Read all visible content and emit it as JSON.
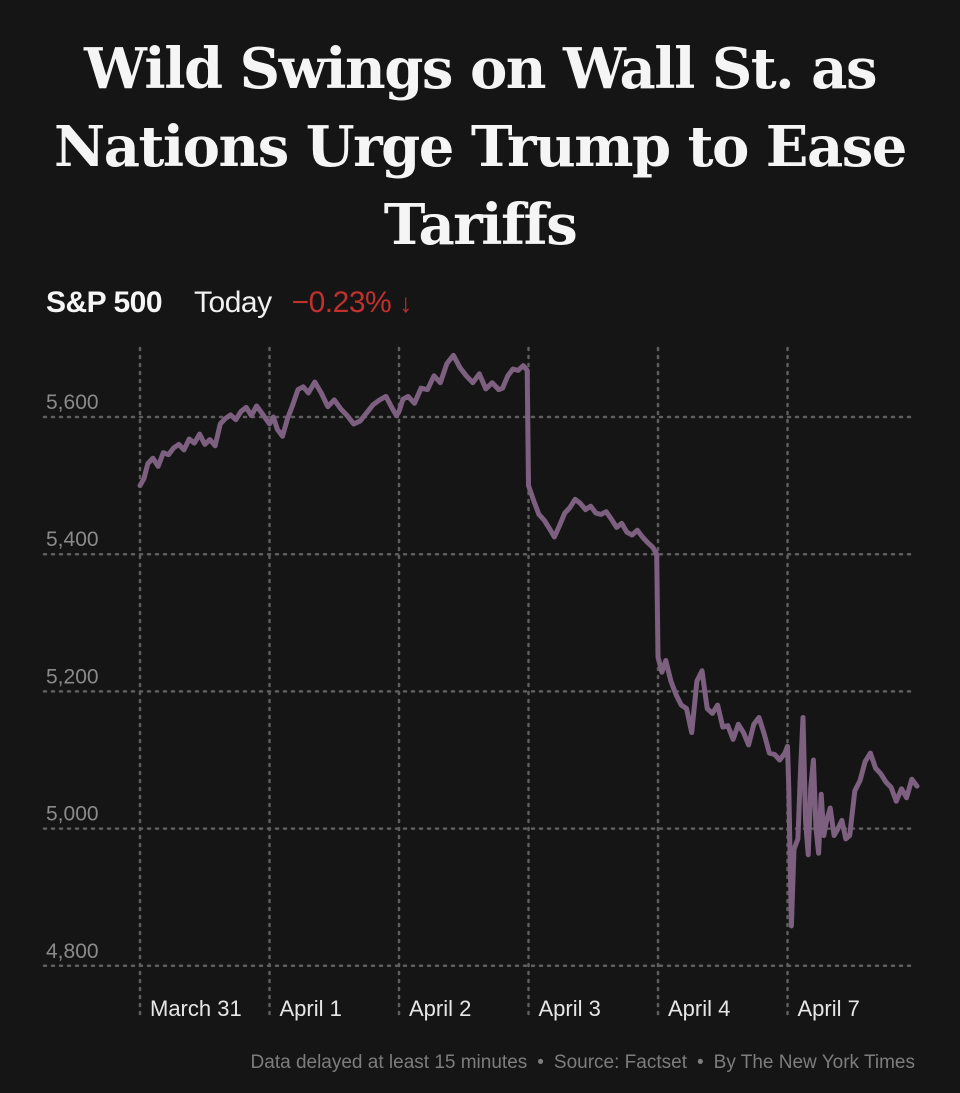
{
  "headline": "Wild Swings on Wall St. as Nations Urge Trump to Ease Tariffs",
  "index_name": "S&P 500",
  "period_label": "Today",
  "change_text": "−0.23%",
  "change_arrow": "↓",
  "colors": {
    "background": "#151515",
    "line": "#7d5f80",
    "negative": "#c0312e",
    "grid": "#5e5e5e",
    "text": "#f2f2f2",
    "muted": "#7d7d7d"
  },
  "footer": {
    "delay_note": "Data delayed at least 15 minutes",
    "source": "Source: Factset",
    "credit": "By The New York Times",
    "separator": "•"
  },
  "chart_data": {
    "type": "line",
    "title": "S&P 500",
    "xlabel": "",
    "ylabel": "",
    "ylim": [
      4780,
      5800
    ],
    "xlim": [
      0,
      6
    ],
    "y_ticks": [
      4800,
      5000,
      5200,
      5400,
      5600
    ],
    "y_tick_labels": [
      "4,800",
      "5,000",
      "5,200",
      "5,400",
      "5,600"
    ],
    "x_tick_positions": [
      0,
      1,
      2,
      3,
      4,
      5
    ],
    "x_tick_labels": [
      "March 31",
      "April 1",
      "April 2",
      "April 3",
      "April 4",
      "April 7"
    ],
    "grid": true,
    "series": [
      {
        "name": "S&P 500",
        "x": [
          0,
          0.03,
          0.06,
          0.1,
          0.14,
          0.18,
          0.22,
          0.26,
          0.3,
          0.34,
          0.38,
          0.42,
          0.46,
          0.5,
          0.54,
          0.58,
          0.62,
          0.66,
          0.7,
          0.74,
          0.78,
          0.82,
          0.86,
          0.9,
          0.94,
          0.97,
          1.0,
          1.03,
          1.06,
          1.1,
          1.14,
          1.18,
          1.22,
          1.26,
          1.3,
          1.35,
          1.4,
          1.45,
          1.5,
          1.55,
          1.6,
          1.65,
          1.7,
          1.75,
          1.8,
          1.85,
          1.9,
          1.95,
          1.98,
          2.0,
          2.03,
          2.07,
          2.12,
          2.17,
          2.22,
          2.27,
          2.32,
          2.37,
          2.42,
          2.47,
          2.52,
          2.57,
          2.62,
          2.67,
          2.72,
          2.77,
          2.8,
          2.84,
          2.88,
          2.92,
          2.96,
          2.99,
          3.0,
          3.04,
          3.08,
          3.12,
          3.16,
          3.2,
          3.24,
          3.28,
          3.32,
          3.36,
          3.4,
          3.44,
          3.48,
          3.52,
          3.56,
          3.6,
          3.64,
          3.68,
          3.72,
          3.76,
          3.8,
          3.84,
          3.88,
          3.92,
          3.96,
          3.99,
          4.0,
          4.03,
          4.06,
          4.1,
          4.14,
          4.18,
          4.22,
          4.26,
          4.3,
          4.34,
          4.38,
          4.42,
          4.46,
          4.5,
          4.54,
          4.58,
          4.62,
          4.66,
          4.7,
          4.74,
          4.78,
          4.82,
          4.86,
          4.9,
          4.94,
          4.98,
          5.0,
          5.01,
          5.03,
          5.05,
          5.08,
          5.1,
          5.12,
          5.14,
          5.16,
          5.18,
          5.2,
          5.22,
          5.24,
          5.26,
          5.28,
          5.3,
          5.33,
          5.36,
          5.39,
          5.42,
          5.45,
          5.48,
          5.52,
          5.56,
          5.6,
          5.64,
          5.68,
          5.72,
          5.76,
          5.8,
          5.84,
          5.88,
          5.92,
          5.96,
          6.0
        ],
        "y": [
          5500,
          5510,
          5532,
          5540,
          5528,
          5548,
          5545,
          5555,
          5560,
          5552,
          5568,
          5562,
          5575,
          5560,
          5567,
          5558,
          5590,
          5598,
          5603,
          5596,
          5608,
          5614,
          5602,
          5616,
          5606,
          5598,
          5590,
          5600,
          5582,
          5572,
          5598,
          5618,
          5640,
          5644,
          5635,
          5651,
          5635,
          5615,
          5625,
          5612,
          5602,
          5590,
          5594,
          5606,
          5618,
          5625,
          5630,
          5612,
          5602,
          5608,
          5626,
          5630,
          5620,
          5642,
          5640,
          5660,
          5650,
          5678,
          5690,
          5672,
          5660,
          5650,
          5663,
          5641,
          5650,
          5640,
          5642,
          5660,
          5670,
          5668,
          5675,
          5668,
          5500,
          5478,
          5458,
          5450,
          5438,
          5425,
          5442,
          5460,
          5468,
          5480,
          5474,
          5465,
          5470,
          5460,
          5458,
          5462,
          5451,
          5439,
          5445,
          5432,
          5428,
          5435,
          5425,
          5417,
          5410,
          5400,
          5250,
          5228,
          5245,
          5215,
          5195,
          5180,
          5175,
          5140,
          5215,
          5230,
          5175,
          5168,
          5180,
          5148,
          5150,
          5130,
          5152,
          5140,
          5122,
          5152,
          5162,
          5138,
          5110,
          5108,
          5100,
          5110,
          5120,
          5058,
          4858,
          4970,
          4985,
          5080,
          5162,
          5010,
          4962,
          5060,
          5100,
          5000,
          4964,
          5050,
          4990,
          5010,
          5030,
          4990,
          5000,
          5012,
          4985,
          4990,
          5055,
          5070,
          5098,
          5110,
          5088,
          5080,
          5068,
          5060,
          5040,
          5058,
          5045,
          5072,
          5062
        ]
      }
    ]
  }
}
